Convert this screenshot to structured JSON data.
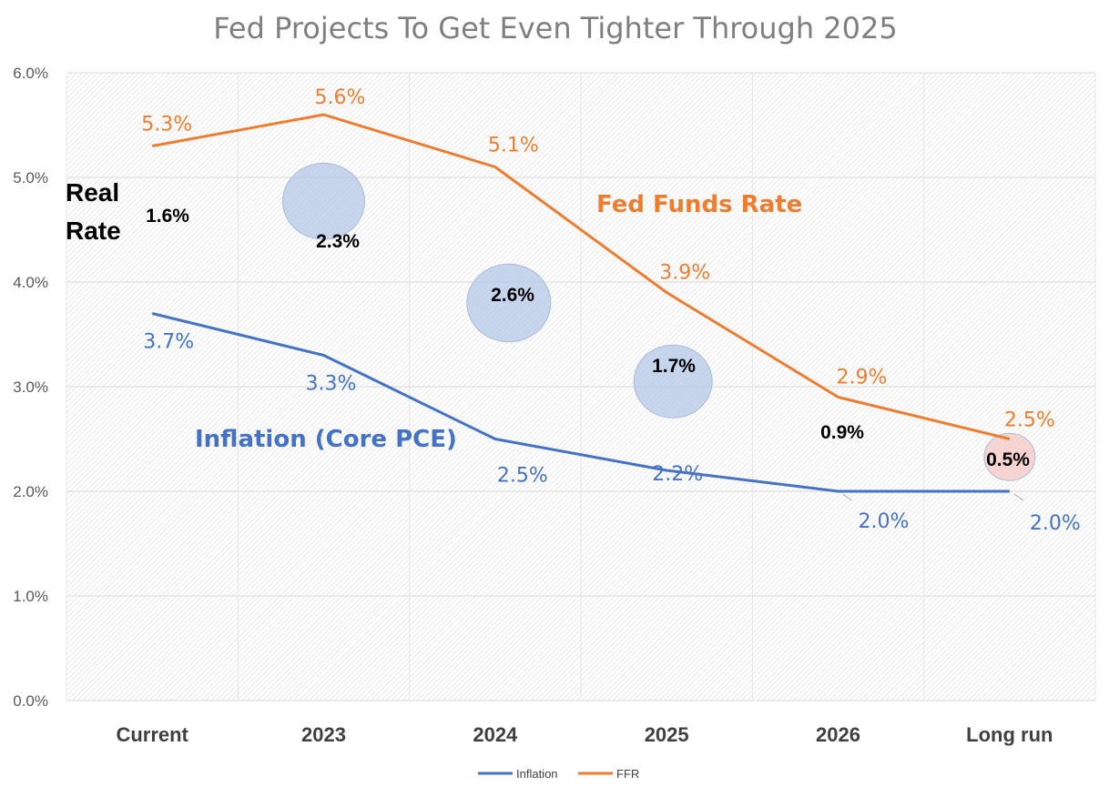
{
  "chart_data": {
    "type": "line",
    "title": "Fed Projects To Get Even Tighter Through 2025",
    "categories": [
      "Current",
      "2023",
      "2024",
      "2025",
      "2026",
      "Long run"
    ],
    "series": [
      {
        "name": "Inflation",
        "values": [
          3.7,
          3.3,
          2.5,
          2.2,
          2.0,
          2.0
        ],
        "labels": [
          "3.7%",
          "3.3%",
          "2.5%",
          "2.2%",
          "2.0%",
          "2.0%"
        ],
        "color": "#4472c4"
      },
      {
        "name": "FFR",
        "values": [
          5.3,
          5.6,
          5.1,
          3.9,
          2.9,
          2.5
        ],
        "labels": [
          "5.3%",
          "5.6%",
          "5.1%",
          "3.9%",
          "2.9%",
          "2.5%"
        ],
        "color": "#ed7d31"
      }
    ],
    "yticks": [
      "0.0%",
      "1.0%",
      "2.0%",
      "3.0%",
      "4.0%",
      "5.0%",
      "6.0%"
    ],
    "ylim": [
      0,
      6
    ],
    "grid": true,
    "legend": "bottom",
    "annotations": {
      "real_rate_label": [
        "Real",
        "Rate"
      ],
      "ffr_title": "Fed Funds Rate",
      "inflation_title": "Inflation (Core PCE)",
      "real_rate_values": [
        "1.6%",
        "2.3%",
        "2.6%",
        "1.7%",
        "0.9%",
        "0.5%"
      ]
    }
  }
}
